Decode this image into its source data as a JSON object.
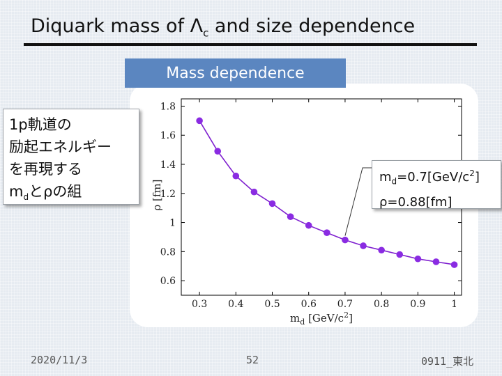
{
  "slide": {
    "title_main": "Diquark mass of Λ",
    "title_sub": "c",
    "title_rest": " and size dependence",
    "tab_label": "Mass dependence",
    "note_left": {
      "line1": "1p軌道の",
      "line2": "励起エネルギー",
      "line3": "を再現する",
      "line4_m": "m",
      "line4_sub": "d",
      "line4_rest": "とρの組"
    },
    "note_right": {
      "m": "m",
      "m_sub": "d",
      "m_value": "=0.7[GeV/c",
      "m_sup": "2",
      "m_close": "]",
      "rho": "ρ=0.88[fm]"
    },
    "footer": {
      "date": "2020/11/3",
      "page": "52",
      "tag": "0911_東北"
    }
  },
  "chart_data": {
    "type": "line",
    "x": [
      0.3,
      0.35,
      0.4,
      0.45,
      0.5,
      0.55,
      0.6,
      0.65,
      0.7,
      0.75,
      0.8,
      0.85,
      0.9,
      0.95,
      1.0
    ],
    "series": [
      {
        "name": "rho",
        "values": [
          1.7,
          1.49,
          1.32,
          1.21,
          1.13,
          1.04,
          0.98,
          0.93,
          0.88,
          0.84,
          0.81,
          0.78,
          0.75,
          0.73,
          0.71
        ]
      }
    ],
    "xlabel": "m",
    "xlabel_sub": "d",
    "xlabel_unit": " [GeV/c",
    "xlabel_sup": "2",
    "xlabel_close": "]",
    "ylabel": "ρ [fm]",
    "xlim": [
      0.25,
      1.02
    ],
    "ylim": [
      0.5,
      1.85
    ],
    "x_ticks": [
      0.3,
      0.4,
      0.5,
      0.6,
      0.7,
      0.8,
      0.9,
      1
    ],
    "x_tick_labels": [
      "0.3",
      "0.4",
      "0.5",
      "0.6",
      "0.7",
      "0.8",
      "0.9",
      "1"
    ],
    "y_ticks": [
      0.6,
      0.8,
      1.0,
      1.2,
      1.4,
      1.6,
      1.8
    ],
    "y_tick_labels": [
      "0.6",
      "0.8",
      "1",
      "1.2",
      "1.4",
      "1.6",
      "1.8"
    ],
    "highlight_x": 0.7,
    "colors": {
      "series": "#7e1fcf",
      "marker": "#8a2be2",
      "axis": "#000000"
    }
  }
}
